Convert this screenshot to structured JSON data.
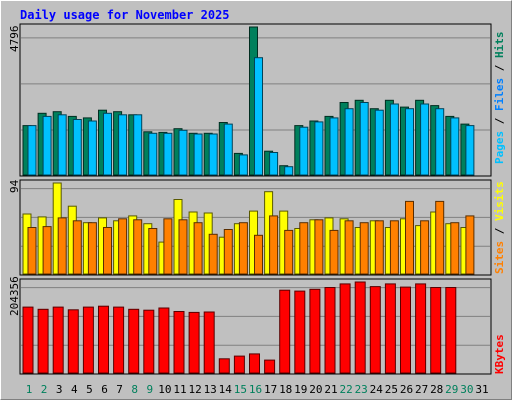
{
  "chart_data": {
    "title": "Daily usage for November 2025",
    "type": "bar",
    "days": [
      "1",
      "2",
      "3",
      "4",
      "5",
      "6",
      "7",
      "8",
      "9",
      "10",
      "11",
      "12",
      "13",
      "14",
      "15",
      "16",
      "17",
      "18",
      "19",
      "20",
      "21",
      "22",
      "23",
      "24",
      "25",
      "26",
      "27",
      "28",
      "29",
      "30",
      "31"
    ],
    "weekend_days": [
      "1",
      "2",
      "8",
      "9",
      "15",
      "16",
      "22",
      "23",
      "29",
      "30"
    ],
    "panels": {
      "hits_files": {
        "max_label": "4796",
        "ylim": [
          0,
          4796
        ],
        "legend": [
          "Pages",
          "Files",
          "Hits"
        ],
        "series": [
          {
            "name": "Hits",
            "color": "#00805c",
            "values": [
              1600,
              2000,
              2050,
              1900,
              1850,
              2100,
              2050,
              1950,
              1400,
              1380,
              1500,
              1350,
              1350,
              1700,
              700,
              4796,
              770,
              300,
              1600,
              1750,
              1900,
              2350,
              2420,
              2150,
              2420,
              2200,
              2420,
              2250,
              1900,
              1650,
              null
            ]
          },
          {
            "name": "Files",
            "color": "#00c0ff",
            "values": [
              1600,
              1900,
              1950,
              1800,
              1750,
              2000,
              1950,
              1950,
              1350,
              1350,
              1450,
              1330,
              1330,
              1650,
              650,
              3800,
              730,
              270,
              1550,
              1720,
              1850,
              2150,
              2350,
              2100,
              2300,
              2150,
              2300,
              2150,
              1850,
              1600,
              null
            ]
          }
        ]
      },
      "visits_sites": {
        "max_label": "94",
        "ylim": [
          0,
          94
        ],
        "legend": [
          "Sites",
          "Visits"
        ],
        "series": [
          {
            "name": "Visits",
            "color": "#ffff00",
            "values": [
              62,
              59,
              94,
              70,
              53,
              58,
              55,
              60,
              52,
              33,
              77,
              64,
              63,
              38,
              52,
              65,
              85,
              65,
              47,
              56,
              58,
              57,
              48,
              55,
              48,
              57,
              50,
              64,
              52,
              48,
              null
            ]
          },
          {
            "name": "Sites",
            "color": "#ff8000",
            "values": [
              48,
              49,
              58,
              55,
              53,
              48,
              57,
              56,
              47,
              57,
              56,
              53,
              41,
              46,
              53,
              40,
              60,
              45,
              53,
              56,
              45,
              55,
              53,
              55,
              55,
              75,
              55,
              75,
              53,
              60,
              null
            ]
          }
        ]
      },
      "kbytes": {
        "max_label": "204356",
        "ylim": [
          0,
          204356
        ],
        "legend": [
          "KBytes"
        ],
        "series": [
          {
            "name": "KBytes",
            "color": "#ff0000",
            "values": [
              148000,
              143000,
              148000,
              142000,
              148000,
              150000,
              148000,
              143000,
              141000,
              146000,
              138000,
              136000,
              137000,
              32000,
              38000,
              43000,
              29000,
              186000,
              184000,
              188000,
              192000,
              200000,
              204356,
              194000,
              200000,
              193000,
              200000,
              192000,
              192000,
              null,
              null
            ]
          }
        ]
      }
    }
  }
}
